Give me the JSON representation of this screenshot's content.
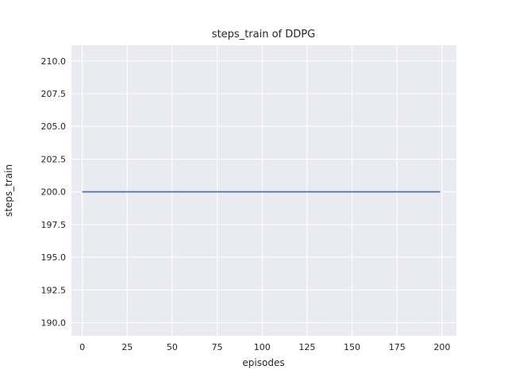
{
  "figure": {
    "background": "#ffffff"
  },
  "chart_data": {
    "type": "line",
    "title": "steps_train of DDPG",
    "xlabel": "episodes",
    "ylabel": "steps_train",
    "xlim": [
      -6,
      208
    ],
    "ylim": [
      189.0,
      211.2
    ],
    "x_ticks": [
      0,
      25,
      50,
      75,
      100,
      125,
      150,
      175,
      200
    ],
    "x_tick_labels": [
      "0",
      "25",
      "50",
      "75",
      "100",
      "125",
      "150",
      "175",
      "200"
    ],
    "y_ticks": [
      190.0,
      192.5,
      195.0,
      197.5,
      200.0,
      202.5,
      205.0,
      207.5,
      210.0
    ],
    "y_tick_labels": [
      "190.0",
      "192.5",
      "195.0",
      "197.5",
      "200.0",
      "202.5",
      "205.0",
      "207.5",
      "210.0"
    ],
    "grid": true,
    "legend_position": "none",
    "axes_background": "#eaeaf2",
    "grid_color": "#ffffff",
    "text_color": "#262626",
    "series": [
      {
        "name": "steps_train",
        "color": "#4c72b0",
        "line_width": 1.8,
        "x": [
          0,
          199
        ],
        "y": [
          200,
          200
        ]
      }
    ]
  }
}
